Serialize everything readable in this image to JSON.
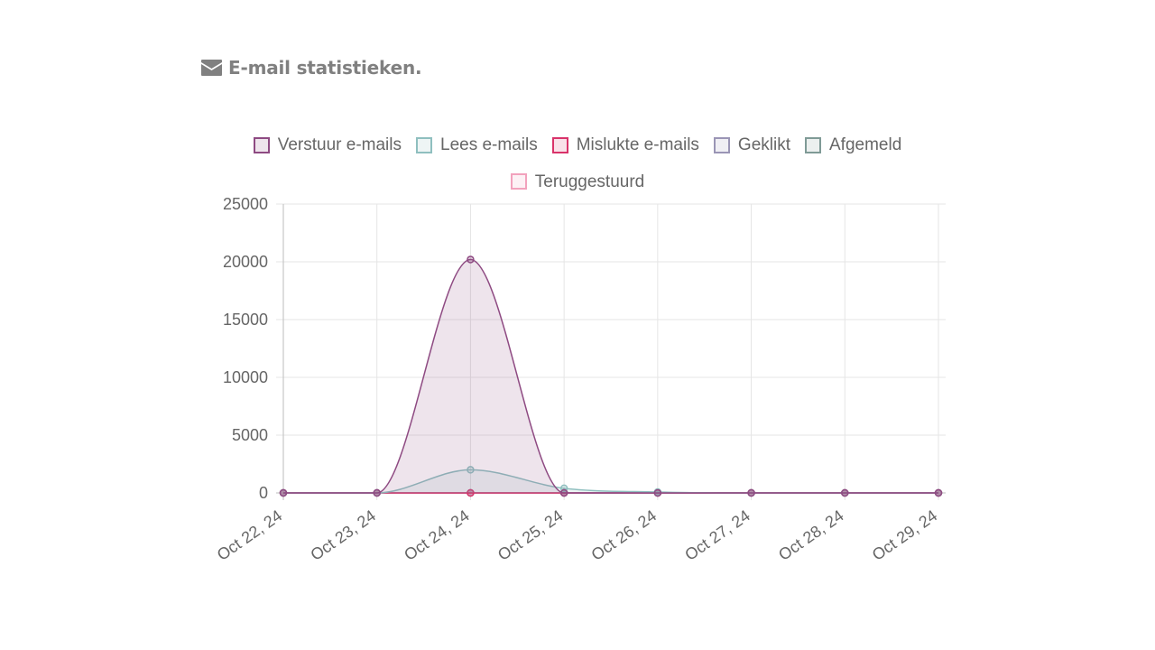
{
  "panel": {
    "title": "E-mail statistieken.",
    "icon": "envelope-icon"
  },
  "chart_data": {
    "type": "line",
    "categories": [
      "Oct 22, 24",
      "Oct 23, 24",
      "Oct 24, 24",
      "Oct 25, 24",
      "Oct 26, 24",
      "Oct 27, 24",
      "Oct 28, 24",
      "Oct 29, 24"
    ],
    "ylim": [
      0,
      25000
    ],
    "yticks": [
      0,
      5000,
      10000,
      15000,
      20000,
      25000
    ],
    "grid": true,
    "legend_position": "top",
    "series": [
      {
        "name": "Verstuur e-mails",
        "values": [
          0,
          0,
          20200,
          0,
          0,
          0,
          0,
          0
        ],
        "color": "#8e4a82",
        "fill": "#8e4a82"
      },
      {
        "name": "Lees e-mails",
        "values": [
          0,
          0,
          2000,
          400,
          80,
          0,
          0,
          0
        ],
        "color": "#8fbfbf",
        "fill": "#8fbfbf"
      },
      {
        "name": "Mislukte e-mails",
        "values": [
          0,
          0,
          0,
          0,
          0,
          0,
          0,
          0
        ],
        "color": "#d9336a",
        "fill": "#d9336a"
      },
      {
        "name": "Geklikt",
        "values": [
          0,
          0,
          0,
          0,
          0,
          0,
          0,
          0
        ],
        "color": "#9a95b5",
        "fill": "#9a95b5"
      },
      {
        "name": "Afgemeld",
        "values": [
          0,
          0,
          0,
          0,
          0,
          0,
          0,
          0
        ],
        "color": "#7f9a96",
        "fill": "#7f9a96"
      },
      {
        "name": "Teruggestuurd",
        "values": [
          0,
          0,
          0,
          0,
          0,
          0,
          0,
          0
        ],
        "color": "#f2a2bd",
        "fill": "#f2a2bd"
      }
    ]
  }
}
